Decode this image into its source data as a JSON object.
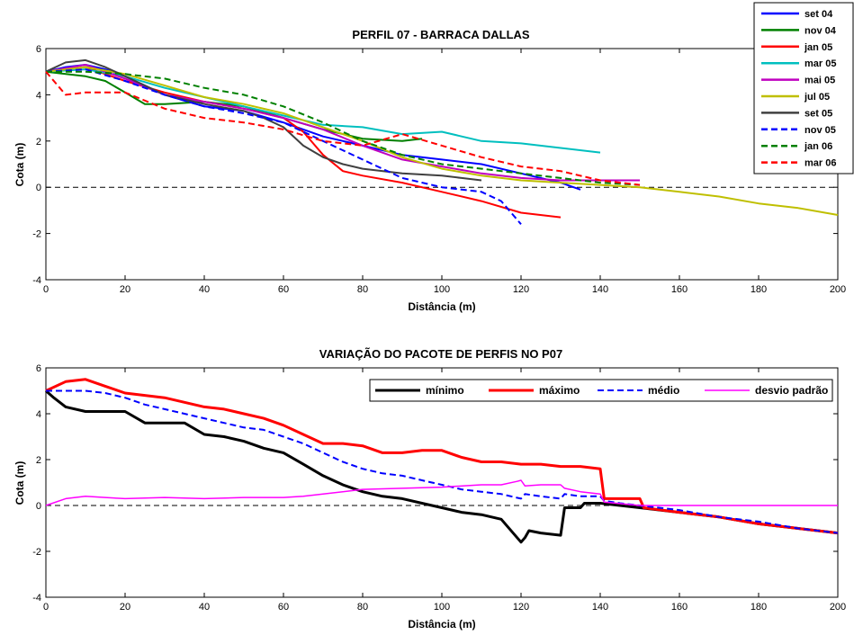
{
  "chart_data": [
    {
      "type": "line",
      "title": "PERFIL 07 - BARRACA DALLAS",
      "xlabel": "Distância (m)",
      "ylabel": "Cota (m)",
      "xlim": [
        0,
        200
      ],
      "ylim": [
        -4,
        6
      ],
      "xticks": [
        0,
        20,
        40,
        60,
        80,
        100,
        120,
        140,
        160,
        180,
        200
      ],
      "yticks": [
        -4,
        -2,
        0,
        2,
        4,
        6
      ],
      "grid": false,
      "zero_line": {
        "y": 0,
        "color": "#000000",
        "dash": true
      },
      "legend": {
        "placement": "right outside top"
      },
      "series": [
        {
          "name": "set 04",
          "color": "#0000ff",
          "dash": false,
          "x": [
            0,
            5,
            10,
            15,
            20,
            30,
            40,
            50,
            60,
            70,
            80,
            90,
            100,
            110,
            120,
            130,
            135
          ],
          "y": [
            5.0,
            5.2,
            5.3,
            5.1,
            4.8,
            4.0,
            3.5,
            3.3,
            2.8,
            2.2,
            1.8,
            1.4,
            1.2,
            1.0,
            0.6,
            0.2,
            -0.1
          ]
        },
        {
          "name": "nov 04",
          "color": "#008000",
          "dash": false,
          "x": [
            0,
            5,
            10,
            15,
            20,
            25,
            30,
            40,
            50,
            60,
            70,
            80,
            90,
            95
          ],
          "y": [
            5.0,
            4.9,
            4.8,
            4.6,
            4.1,
            3.6,
            3.6,
            3.7,
            3.5,
            3.0,
            2.5,
            2.1,
            2.0,
            2.1
          ]
        },
        {
          "name": "jan 05",
          "color": "#ff0000",
          "dash": false,
          "x": [
            0,
            10,
            20,
            30,
            40,
            50,
            60,
            65,
            70,
            75,
            80,
            90,
            100,
            110,
            120,
            130
          ],
          "y": [
            5.0,
            5.2,
            4.6,
            4.1,
            3.7,
            3.4,
            3.0,
            2.4,
            1.4,
            0.7,
            0.5,
            0.2,
            -0.2,
            -0.6,
            -1.1,
            -1.3
          ]
        },
        {
          "name": "mar 05",
          "color": "#00bfbf",
          "dash": false,
          "x": [
            0,
            10,
            20,
            30,
            40,
            50,
            60,
            70,
            80,
            90,
            100,
            110,
            120,
            130,
            140
          ],
          "y": [
            5.0,
            5.1,
            4.8,
            4.3,
            3.9,
            3.5,
            3.1,
            2.7,
            2.6,
            2.3,
            2.4,
            2.0,
            1.9,
            1.7,
            1.5
          ]
        },
        {
          "name": "mai 05",
          "color": "#bf00bf",
          "dash": false,
          "x": [
            0,
            10,
            20,
            30,
            40,
            50,
            60,
            70,
            80,
            90,
            100,
            110,
            120,
            130,
            140,
            150
          ],
          "y": [
            5.0,
            5.3,
            4.7,
            4.0,
            3.7,
            3.4,
            3.0,
            2.5,
            1.8,
            1.2,
            0.9,
            0.6,
            0.4,
            0.3,
            0.3,
            0.3
          ]
        },
        {
          "name": "jul 05",
          "color": "#bfbf00",
          "dash": false,
          "x": [
            0,
            10,
            20,
            30,
            40,
            50,
            60,
            70,
            80,
            90,
            100,
            110,
            120,
            130,
            140,
            150,
            160,
            170,
            180,
            190,
            200
          ],
          "y": [
            5.0,
            5.2,
            4.9,
            4.4,
            3.9,
            3.6,
            3.2,
            2.6,
            2.0,
            1.3,
            0.8,
            0.5,
            0.3,
            0.2,
            0.1,
            0.0,
            -0.2,
            -0.4,
            -0.7,
            -0.9,
            -1.2
          ]
        },
        {
          "name": "set 05",
          "color": "#404040",
          "dash": false,
          "x": [
            0,
            5,
            10,
            15,
            20,
            30,
            40,
            50,
            55,
            60,
            65,
            70,
            75,
            80,
            90,
            100,
            105,
            110
          ],
          "y": [
            5.0,
            5.4,
            5.5,
            5.2,
            4.8,
            4.0,
            3.6,
            3.3,
            3.0,
            2.6,
            1.8,
            1.3,
            1.0,
            0.8,
            0.6,
            0.5,
            0.4,
            0.3
          ]
        },
        {
          "name": "nov 05",
          "color": "#0000ff",
          "dash": true,
          "x": [
            0,
            10,
            20,
            30,
            40,
            50,
            60,
            70,
            80,
            90,
            100,
            110,
            115,
            120
          ],
          "y": [
            5.0,
            5.1,
            4.6,
            4.0,
            3.5,
            3.2,
            2.8,
            2.0,
            1.2,
            0.4,
            0.0,
            -0.2,
            -0.6,
            -1.6
          ]
        },
        {
          "name": "jan 06",
          "color": "#008000",
          "dash": true,
          "x": [
            0,
            10,
            20,
            30,
            40,
            50,
            60,
            70,
            80,
            90,
            100,
            110,
            120,
            130,
            140,
            150
          ],
          "y": [
            5.0,
            5.0,
            4.9,
            4.7,
            4.3,
            4.0,
            3.5,
            2.8,
            2.0,
            1.4,
            1.0,
            0.8,
            0.6,
            0.4,
            0.2,
            0.1
          ]
        },
        {
          "name": "mar 06",
          "color": "#ff0000",
          "dash": true,
          "x": [
            0,
            5,
            10,
            20,
            30,
            40,
            50,
            60,
            70,
            80,
            90,
            100,
            110,
            120,
            130,
            140,
            150
          ],
          "y": [
            5.0,
            4.0,
            4.1,
            4.1,
            3.4,
            3.0,
            2.8,
            2.5,
            2.0,
            1.8,
            2.3,
            1.8,
            1.3,
            0.9,
            0.7,
            0.3,
            0.1
          ]
        }
      ]
    },
    {
      "type": "line",
      "title": "VARIAÇÃO DO PACOTE DE PERFIS NO P07",
      "xlabel": "Distância (m)",
      "ylabel": "Cota (m)",
      "xlim": [
        0,
        200
      ],
      "ylim": [
        -4,
        6
      ],
      "xticks": [
        0,
        20,
        40,
        60,
        80,
        100,
        120,
        140,
        160,
        180,
        200
      ],
      "yticks": [
        -4,
        -2,
        0,
        2,
        4,
        6
      ],
      "grid": false,
      "zero_line": {
        "y": 0,
        "color": "#000000",
        "dash": true
      },
      "legend": {
        "placement": "top-right"
      },
      "series": [
        {
          "name": "mínimo",
          "color": "#000000",
          "dash": false,
          "width": 3,
          "x": [
            0,
            2,
            5,
            10,
            15,
            20,
            25,
            30,
            35,
            40,
            45,
            50,
            55,
            60,
            65,
            70,
            75,
            80,
            85,
            90,
            95,
            100,
            105,
            110,
            115,
            120,
            121,
            122,
            125,
            130,
            131,
            132,
            135,
            136,
            140,
            145,
            150,
            160,
            170,
            180,
            190,
            200
          ],
          "y": [
            5.0,
            4.7,
            4.3,
            4.1,
            4.1,
            4.1,
            3.6,
            3.6,
            3.6,
            3.1,
            3.0,
            2.8,
            2.5,
            2.3,
            1.8,
            1.3,
            0.9,
            0.6,
            0.4,
            0.3,
            0.1,
            -0.1,
            -0.3,
            -0.4,
            -0.6,
            -1.6,
            -1.4,
            -1.1,
            -1.2,
            -1.3,
            -0.1,
            -0.1,
            -0.1,
            0.1,
            0.1,
            0.0,
            -0.1,
            -0.3,
            -0.5,
            -0.8,
            -1.0,
            -1.2
          ]
        },
        {
          "name": "máximo",
          "color": "#ff0000",
          "dash": false,
          "width": 3,
          "x": [
            0,
            5,
            10,
            15,
            20,
            25,
            30,
            35,
            40,
            45,
            50,
            55,
            60,
            65,
            70,
            75,
            80,
            85,
            90,
            95,
            100,
            105,
            110,
            115,
            120,
            125,
            130,
            135,
            140,
            141,
            145,
            150,
            151,
            160,
            170,
            180,
            190,
            200
          ],
          "y": [
            5.0,
            5.4,
            5.5,
            5.2,
            4.9,
            4.8,
            4.7,
            4.5,
            4.3,
            4.2,
            4.0,
            3.8,
            3.5,
            3.1,
            2.7,
            2.7,
            2.6,
            2.3,
            2.3,
            2.4,
            2.4,
            2.1,
            1.9,
            1.9,
            1.8,
            1.8,
            1.7,
            1.7,
            1.6,
            0.3,
            0.3,
            0.3,
            -0.1,
            -0.3,
            -0.5,
            -0.8,
            -1.0,
            -1.2
          ]
        },
        {
          "name": "médio",
          "color": "#0000ff",
          "dash": true,
          "width": 2,
          "x": [
            0,
            5,
            10,
            15,
            20,
            25,
            30,
            35,
            40,
            45,
            50,
            55,
            60,
            65,
            70,
            75,
            80,
            85,
            90,
            95,
            100,
            105,
            110,
            115,
            120,
            121,
            125,
            130,
            131,
            135,
            140,
            141,
            145,
            150,
            160,
            170,
            180,
            190,
            200
          ],
          "y": [
            5.0,
            5.0,
            5.0,
            4.9,
            4.7,
            4.4,
            4.2,
            4.0,
            3.8,
            3.6,
            3.4,
            3.3,
            3.0,
            2.7,
            2.3,
            1.9,
            1.6,
            1.4,
            1.3,
            1.1,
            0.9,
            0.7,
            0.6,
            0.5,
            0.3,
            0.5,
            0.4,
            0.3,
            0.5,
            0.4,
            0.4,
            0.2,
            0.1,
            0.0,
            -0.2,
            -0.5,
            -0.7,
            -1.0,
            -1.2
          ]
        },
        {
          "name": "desvio padrão",
          "color": "#ff00ff",
          "dash": false,
          "width": 1.5,
          "x": [
            0,
            5,
            10,
            15,
            20,
            30,
            40,
            50,
            60,
            65,
            70,
            80,
            90,
            100,
            110,
            115,
            119,
            120,
            121,
            125,
            130,
            131,
            135,
            140,
            141,
            150,
            160,
            170,
            180,
            190,
            200
          ],
          "y": [
            0.0,
            0.3,
            0.4,
            0.35,
            0.3,
            0.35,
            0.3,
            0.35,
            0.35,
            0.4,
            0.5,
            0.7,
            0.75,
            0.8,
            0.9,
            0.9,
            1.05,
            1.1,
            0.85,
            0.9,
            0.9,
            0.75,
            0.6,
            0.5,
            0.15,
            0.0,
            0.0,
            0.0,
            0.0,
            0.0,
            0.0
          ]
        }
      ]
    }
  ]
}
